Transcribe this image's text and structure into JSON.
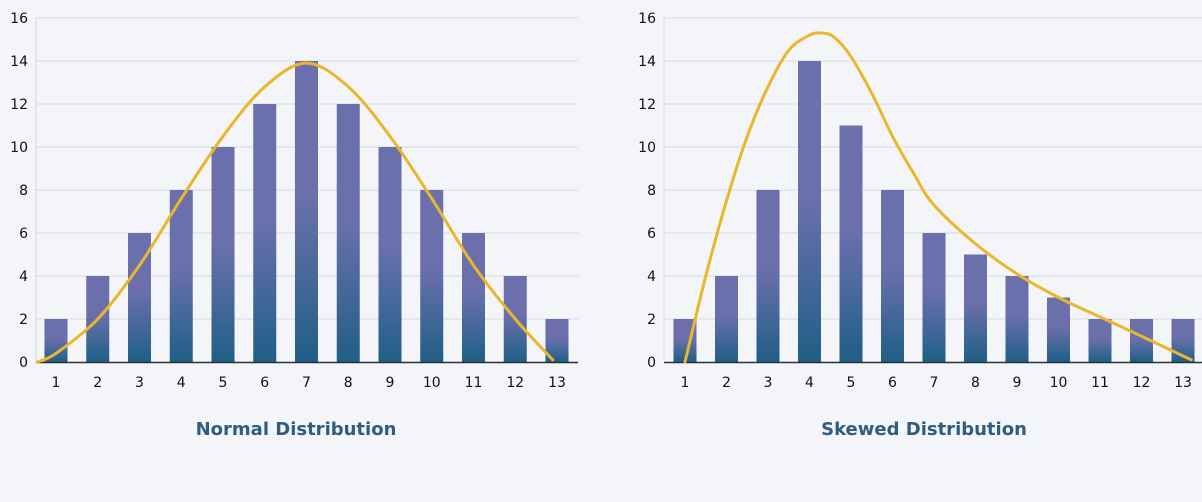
{
  "colors": {
    "bar_top": "#6b70ad",
    "bar_bottom": "#1f5f86",
    "curve": "#eab72c",
    "grid": "#d6d9de",
    "title": "#2f5d80",
    "text": "#111111"
  },
  "chart_data": [
    {
      "type": "bar",
      "title": "Normal Distribution",
      "categories": [
        "1",
        "2",
        "3",
        "4",
        "5",
        "6",
        "7",
        "8",
        "9",
        "10",
        "11",
        "12",
        "13"
      ],
      "values": [
        2,
        4,
        6,
        8,
        10,
        12,
        14,
        12,
        10,
        8,
        6,
        4,
        2
      ],
      "ylim": [
        0,
        16
      ],
      "yticks": [
        "0",
        "2",
        "4",
        "6",
        "8",
        "10",
        "12",
        "14",
        "16"
      ],
      "overlay_curve": {
        "type": "line",
        "smooth": true,
        "x": [
          0.55,
          1,
          2,
          3,
          4,
          5,
          6,
          7,
          8,
          9,
          10,
          11,
          12,
          12.9
        ],
        "y": [
          0,
          0.4,
          2,
          4.5,
          7.6,
          10.5,
          12.8,
          13.9,
          12.8,
          10.5,
          7.6,
          4.5,
          2,
          0.1
        ]
      },
      "grid": true,
      "xlabel": "",
      "ylabel": ""
    },
    {
      "type": "bar",
      "title": "Skewed Distribution",
      "categories": [
        "1",
        "2",
        "3",
        "4",
        "5",
        "6",
        "7",
        "8",
        "9",
        "10",
        "11",
        "12",
        "13"
      ],
      "values": [
        2,
        4,
        8,
        14,
        11,
        8,
        6,
        5,
        4,
        3,
        2,
        2,
        2
      ],
      "ylim": [
        0,
        16
      ],
      "yticks": [
        "0",
        "2",
        "4",
        "6",
        "8",
        "10",
        "12",
        "14",
        "16"
      ],
      "overlay_curve": {
        "type": "line",
        "smooth": true,
        "x": [
          1,
          1.5,
          2,
          2.5,
          3,
          3.5,
          4,
          4.3,
          4.6,
          5,
          5.5,
          6,
          6.5,
          7,
          8,
          9,
          10,
          11,
          12,
          13.2
        ],
        "y": [
          0,
          4,
          7.5,
          10.5,
          12.8,
          14.5,
          15.2,
          15.3,
          15.1,
          14.2,
          12.5,
          10.5,
          8.8,
          7.3,
          5.5,
          4.1,
          3,
          2.1,
          1.2,
          0.1
        ]
      },
      "grid": true,
      "xlabel": "",
      "ylabel": ""
    }
  ]
}
